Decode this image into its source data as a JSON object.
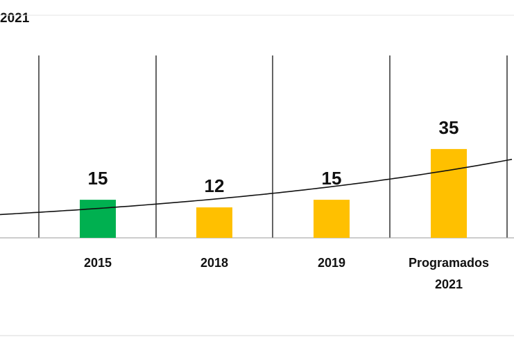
{
  "header": {
    "fragment": "2021"
  },
  "chart_data": {
    "type": "bar",
    "categories": [
      "2015",
      "2018",
      "2019",
      "Programados 2021"
    ],
    "category_lines": [
      [
        "2015"
      ],
      [
        "2018"
      ],
      [
        "2019"
      ],
      [
        "Programados",
        "2021"
      ]
    ],
    "values": [
      15,
      12,
      15,
      35
    ],
    "bar_colors": [
      "#00B050",
      "#FFC000",
      "#FFC000",
      "#FFC000"
    ],
    "data_labels": [
      "15",
      "12",
      "15",
      "35"
    ],
    "trendline": {
      "type": "exponential",
      "color": "#111111"
    },
    "ylim": [
      0,
      40
    ],
    "grid": "vertical-category-separators",
    "title": "",
    "xlabel": "",
    "ylabel": ""
  }
}
